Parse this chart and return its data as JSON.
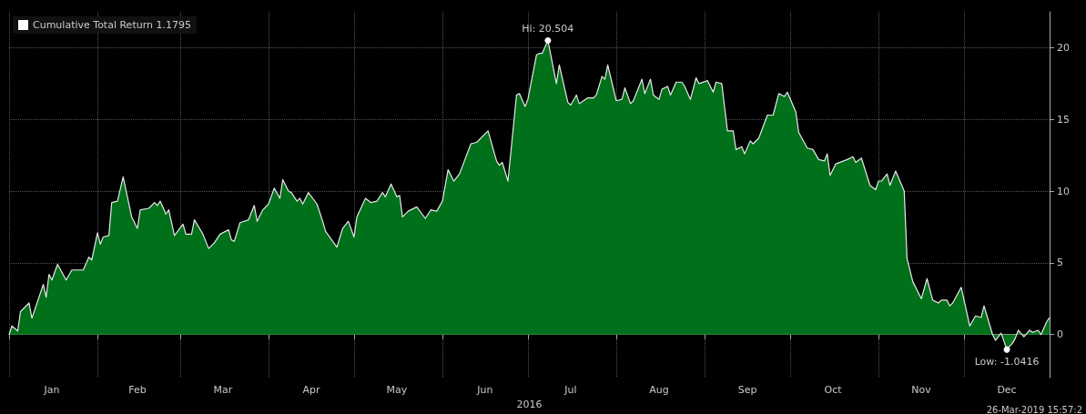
{
  "chart_data": {
    "type": "area",
    "xlabel": "2016",
    "legend": "top left",
    "grid": true,
    "marker": "none",
    "line_style": "solid",
    "xlim": [
      "2016-01-01",
      "2016-12-31"
    ],
    "ylim": [
      -3,
      22.5
    ],
    "yticks": [
      0,
      5,
      10,
      15,
      20
    ],
    "xticks": [
      {
        "value": "2016-01-01",
        "label": null
      },
      {
        "value": "2016-01-16",
        "label": "Jan"
      },
      {
        "value": "2016-02-01",
        "label": null
      },
      {
        "value": "2016-02-15",
        "label": "Feb"
      },
      {
        "value": "2016-03-01",
        "label": null
      },
      {
        "value": "2016-03-16",
        "label": "Mar"
      },
      {
        "value": "2016-04-01",
        "label": null
      },
      {
        "value": "2016-04-16",
        "label": "Apr"
      },
      {
        "value": "2016-05-01",
        "label": null
      },
      {
        "value": "2016-05-16",
        "label": "May"
      },
      {
        "value": "2016-06-01",
        "label": null
      },
      {
        "value": "2016-06-16",
        "label": "Jun"
      },
      {
        "value": "2016-07-01",
        "label": null
      },
      {
        "value": "2016-07-16",
        "label": "Jul"
      },
      {
        "value": "2016-08-01",
        "label": null
      },
      {
        "value": "2016-08-16",
        "label": "Aug"
      },
      {
        "value": "2016-09-01",
        "label": null
      },
      {
        "value": "2016-09-16",
        "label": "Sep"
      },
      {
        "value": "2016-10-01",
        "label": null
      },
      {
        "value": "2016-10-16",
        "label": "Oct"
      },
      {
        "value": "2016-11-01",
        "label": null
      },
      {
        "value": "2016-11-16",
        "label": "Nov"
      },
      {
        "value": "2016-12-01",
        "label": null
      },
      {
        "value": "2016-12-16",
        "label": "Dec"
      }
    ],
    "x": [
      "2016-01-01",
      "2016-01-02",
      "2016-01-04",
      "2016-01-05",
      "2016-01-08",
      "2016-01-09",
      "2016-01-13",
      "2016-01-14",
      "2016-01-15",
      "2016-01-16",
      "2016-01-18",
      "2016-01-21",
      "2016-01-23",
      "2016-01-27",
      "2016-01-29",
      "2016-01-30",
      "2016-02-01",
      "2016-02-02",
      "2016-02-03",
      "2016-02-05",
      "2016-02-06",
      "2016-02-08",
      "2016-02-10",
      "2016-02-13",
      "2016-02-15",
      "2016-02-16",
      "2016-02-19",
      "2016-02-21",
      "2016-02-22",
      "2016-02-23",
      "2016-02-25",
      "2016-02-26",
      "2016-02-28",
      "2016-03-02",
      "2016-03-03",
      "2016-03-05",
      "2016-03-06",
      "2016-03-09",
      "2016-03-11",
      "2016-03-13",
      "2016-03-15",
      "2016-03-18",
      "2016-03-19",
      "2016-03-20",
      "2016-03-22",
      "2016-03-25",
      "2016-03-27",
      "2016-03-28",
      "2016-03-30",
      "2016-04-01",
      "2016-04-03",
      "2016-04-05",
      "2016-04-06",
      "2016-04-08",
      "2016-04-09",
      "2016-04-11",
      "2016-04-12",
      "2016-04-13",
      "2016-04-15",
      "2016-04-18",
      "2016-04-20",
      "2016-04-21",
      "2016-04-25",
      "2016-04-27",
      "2016-04-29",
      "2016-05-01",
      "2016-05-02",
      "2016-05-05",
      "2016-05-07",
      "2016-05-09",
      "2016-05-11",
      "2016-05-12",
      "2016-05-14",
      "2016-05-16",
      "2016-05-17",
      "2016-05-18",
      "2016-05-20",
      "2016-05-23",
      "2016-05-26",
      "2016-05-28",
      "2016-05-30",
      "2016-06-01",
      "2016-06-03",
      "2016-06-05",
      "2016-06-07",
      "2016-06-11",
      "2016-06-13",
      "2016-06-17",
      "2016-06-20",
      "2016-06-21",
      "2016-06-22",
      "2016-06-24",
      "2016-06-27",
      "2016-06-28",
      "2016-06-30",
      "2016-07-01",
      "2016-07-04",
      "2016-07-05",
      "2016-07-06",
      "2016-07-08",
      "2016-07-11",
      "2016-07-12",
      "2016-07-15",
      "2016-07-16",
      "2016-07-18",
      "2016-07-19",
      "2016-07-22",
      "2016-07-24",
      "2016-07-25",
      "2016-07-27",
      "2016-07-28",
      "2016-07-29",
      "2016-08-01",
      "2016-08-03",
      "2016-08-04",
      "2016-08-06",
      "2016-08-07",
      "2016-08-10",
      "2016-08-11",
      "2016-08-13",
      "2016-08-14",
      "2016-08-16",
      "2016-08-17",
      "2016-08-19",
      "2016-08-20",
      "2016-08-22",
      "2016-08-24",
      "2016-08-25",
      "2016-08-27",
      "2016-08-29",
      "2016-08-30",
      "2016-09-02",
      "2016-09-04",
      "2016-09-05",
      "2016-09-07",
      "2016-09-09",
      "2016-09-11",
      "2016-09-12",
      "2016-09-14",
      "2016-09-15",
      "2016-09-17",
      "2016-09-18",
      "2016-09-20",
      "2016-09-23",
      "2016-09-25",
      "2016-09-27",
      "2016-09-29",
      "2016-09-30",
      "2016-10-03",
      "2016-10-04",
      "2016-10-07",
      "2016-10-09",
      "2016-10-11",
      "2016-10-13",
      "2016-10-14",
      "2016-10-15",
      "2016-10-17",
      "2016-10-21",
      "2016-10-23",
      "2016-10-24",
      "2016-10-26",
      "2016-10-29",
      "2016-10-31",
      "2016-11-01",
      "2016-11-02",
      "2016-11-04",
      "2016-11-05",
      "2016-11-07",
      "2016-11-10",
      "2016-11-11",
      "2016-11-13",
      "2016-11-16",
      "2016-11-18",
      "2016-11-20",
      "2016-11-22",
      "2016-11-23",
      "2016-11-25",
      "2016-11-26",
      "2016-11-27",
      "2016-11-30",
      "2016-12-03",
      "2016-12-05",
      "2016-12-07",
      "2016-12-08",
      "2016-12-11",
      "2016-12-12",
      "2016-12-14",
      "2016-12-16",
      "2016-12-18",
      "2016-12-19",
      "2016-12-20",
      "2016-12-22",
      "2016-12-24",
      "2016-12-25",
      "2016-12-27",
      "2016-12-28",
      "2016-12-30",
      "2016-12-31"
    ],
    "series": [
      {
        "name": "Cumulative Total Return 1.1795",
        "color": "#00701a",
        "values": [
          0,
          0.6,
          0.25,
          1.6,
          2.2,
          1.15,
          3.5,
          2.6,
          4.2,
          3.8,
          4.9,
          3.8,
          4.5,
          4.5,
          5.4,
          5.2,
          7.1,
          6.3,
          6.8,
          6.9,
          9.2,
          9.3,
          11.0,
          8.2,
          7.4,
          8.7,
          8.8,
          9.2,
          9.0,
          9.3,
          8.4,
          8.7,
          6.9,
          7.7,
          7.0,
          7.0,
          8.0,
          7.0,
          6.0,
          6.4,
          7.0,
          7.3,
          6.6,
          6.5,
          7.8,
          8.0,
          9.0,
          7.9,
          8.7,
          9.1,
          10.2,
          9.5,
          10.8,
          10.0,
          9.9,
          9.3,
          9.5,
          9.1,
          9.9,
          9.1,
          7.9,
          7.2,
          6.1,
          7.4,
          7.9,
          6.8,
          8.2,
          9.5,
          9.2,
          9.3,
          9.9,
          9.6,
          10.5,
          9.6,
          9.7,
          8.2,
          8.6,
          8.9,
          8.1,
          8.7,
          8.6,
          9.3,
          11.5,
          10.7,
          11.2,
          13.3,
          13.4,
          14.2,
          12.1,
          11.8,
          12.0,
          10.7,
          16.7,
          16.8,
          15.9,
          16.4,
          19.5,
          19.6,
          19.6,
          20.504,
          17.5,
          18.8,
          16.2,
          16.0,
          16.7,
          16.1,
          16.5,
          16.5,
          16.7,
          18.0,
          17.8,
          18.8,
          16.3,
          16.4,
          17.2,
          16.1,
          16.3,
          17.8,
          16.8,
          17.8,
          16.7,
          16.4,
          17.1,
          17.3,
          16.7,
          17.6,
          17.6,
          17.3,
          16.4,
          17.9,
          17.5,
          17.7,
          16.9,
          17.6,
          17.5,
          14.2,
          14.2,
          12.9,
          13.1,
          12.6,
          13.5,
          13.3,
          13.7,
          15.3,
          15.3,
          16.8,
          16.6,
          16.9,
          15.5,
          14.1,
          13.0,
          12.9,
          12.2,
          12.1,
          12.6,
          11.1,
          11.9,
          12.2,
          12.4,
          12.0,
          12.3,
          10.4,
          10.1,
          10.7,
          10.7,
          11.2,
          10.4,
          11.4,
          10.0,
          5.3,
          3.7,
          2.5,
          3.9,
          2.4,
          2.2,
          2.4,
          2.4,
          2.0,
          2.2,
          3.3,
          0.6,
          1.3,
          1.2,
          2.0,
          0,
          -0.4,
          0.1,
          -1.0416,
          -0.6,
          -0.25,
          0.3,
          -0.15,
          0.3,
          0.15,
          0.3,
          0,
          0.9,
          1.1795
        ]
      }
    ],
    "annotations": [
      {
        "text": "Hi: 20.504",
        "x": "2016-07-08",
        "y": 20.504
      },
      {
        "text": "Low: -1.0416",
        "x": "2016-12-16",
        "y": -1.0416
      },
      "26-Mar-2019 15:57:2"
    ]
  }
}
